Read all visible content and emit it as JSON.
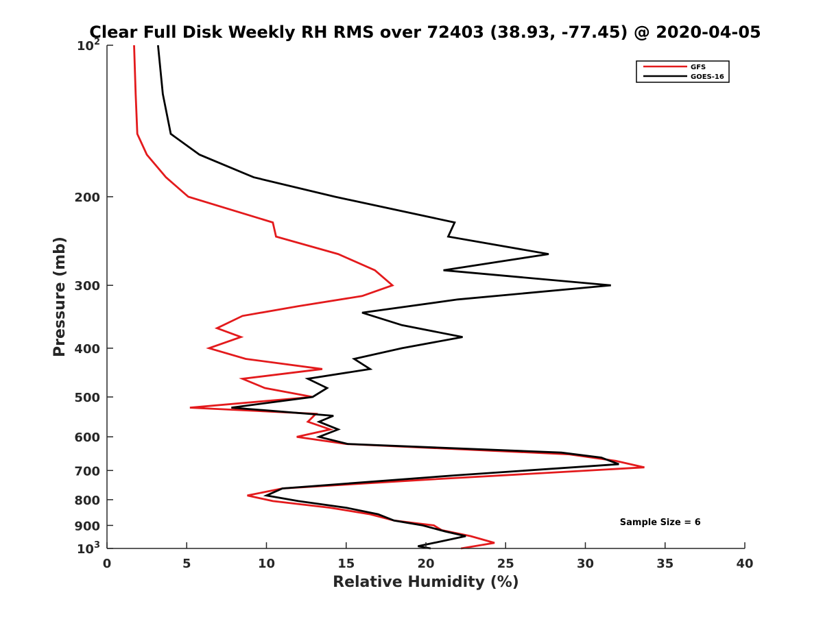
{
  "chart_data": {
    "type": "line",
    "title": "Clear Full Disk Weekly RH RMS over 72403 (38.93, -77.45) @ 2020-04-05",
    "xlabel": "Relative Humidity (%)",
    "ylabel": "Pressure (mb)",
    "xlim": [
      0,
      40
    ],
    "ylim": [
      100,
      1000
    ],
    "y_scale": "log",
    "y_reversed": true,
    "grid": false,
    "legend_position": "top-right",
    "x_ticks": [
      0,
      5,
      10,
      15,
      20,
      25,
      30,
      35,
      40
    ],
    "y_ticks": [
      {
        "value": 100,
        "base": "10",
        "exp": "2"
      },
      {
        "value": 200,
        "label": "200"
      },
      {
        "value": 300,
        "label": "300"
      },
      {
        "value": 400,
        "label": "400"
      },
      {
        "value": 500,
        "label": "500"
      },
      {
        "value": 600,
        "label": "600"
      },
      {
        "value": 700,
        "label": "700"
      },
      {
        "value": 800,
        "label": "800"
      },
      {
        "value": 900,
        "label": "900"
      },
      {
        "value": 1000,
        "base": "10",
        "exp": "3"
      }
    ],
    "series": [
      {
        "name": "GFS",
        "color": "#e31a1c",
        "points": [
          [
            1.7,
            100
          ],
          [
            1.8,
            125
          ],
          [
            1.9,
            150
          ],
          [
            2.5,
            165
          ],
          [
            3.7,
            183
          ],
          [
            5.1,
            200
          ],
          [
            10.4,
            225
          ],
          [
            10.6,
            240
          ],
          [
            14.5,
            260
          ],
          [
            16.8,
            280
          ],
          [
            17.9,
            300
          ],
          [
            16.0,
            315
          ],
          [
            12.0,
            330
          ],
          [
            8.5,
            345
          ],
          [
            6.9,
            365
          ],
          [
            8.4,
            380
          ],
          [
            6.4,
            400
          ],
          [
            8.7,
            420
          ],
          [
            13.5,
            440
          ],
          [
            8.5,
            460
          ],
          [
            9.9,
            480
          ],
          [
            12.9,
            500
          ],
          [
            5.2,
            525
          ],
          [
            13.1,
            540
          ],
          [
            12.6,
            560
          ],
          [
            14.0,
            580
          ],
          [
            11.9,
            600
          ],
          [
            15.0,
            620
          ],
          [
            29.0,
            650
          ],
          [
            31.9,
            670
          ],
          [
            33.7,
            690
          ],
          [
            20.0,
            730
          ],
          [
            11.0,
            760
          ],
          [
            8.8,
            785
          ],
          [
            10.4,
            805
          ],
          [
            14.0,
            830
          ],
          [
            16.5,
            855
          ],
          [
            18.0,
            880
          ],
          [
            20.5,
            900
          ],
          [
            21.0,
            920
          ],
          [
            22.8,
            945
          ],
          [
            24.3,
            975
          ],
          [
            22.2,
            1000
          ]
        ]
      },
      {
        "name": "GOES-16",
        "color": "#000000",
        "points": [
          [
            3.2,
            100
          ],
          [
            3.5,
            125
          ],
          [
            4.0,
            150
          ],
          [
            5.8,
            165
          ],
          [
            9.2,
            183
          ],
          [
            14.3,
            200
          ],
          [
            21.8,
            225
          ],
          [
            21.4,
            240
          ],
          [
            27.7,
            260
          ],
          [
            21.1,
            280
          ],
          [
            31.6,
            300
          ],
          [
            22.0,
            320
          ],
          [
            16.0,
            340
          ],
          [
            18.5,
            360
          ],
          [
            22.3,
            380
          ],
          [
            18.5,
            400
          ],
          [
            15.5,
            420
          ],
          [
            16.5,
            440
          ],
          [
            12.6,
            460
          ],
          [
            13.8,
            480
          ],
          [
            12.9,
            500
          ],
          [
            7.8,
            525
          ],
          [
            14.2,
            545
          ],
          [
            13.3,
            560
          ],
          [
            14.5,
            580
          ],
          [
            13.3,
            600
          ],
          [
            15.1,
            620
          ],
          [
            28.5,
            645
          ],
          [
            31.0,
            660
          ],
          [
            32.1,
            680
          ],
          [
            22.0,
            715
          ],
          [
            11.0,
            760
          ],
          [
            10.0,
            785
          ],
          [
            12.0,
            805
          ],
          [
            15.0,
            830
          ],
          [
            17.0,
            855
          ],
          [
            18.0,
            880
          ],
          [
            19.8,
            900
          ],
          [
            21.2,
            925
          ],
          [
            22.5,
            945
          ],
          [
            20.5,
            975
          ],
          [
            19.5,
            990
          ],
          [
            20.3,
            1000
          ]
        ]
      }
    ],
    "annotations": [
      {
        "text": "Sample Size = 6",
        "position": "bottom-right",
        "x": 34.7,
        "y": 910
      }
    ]
  }
}
